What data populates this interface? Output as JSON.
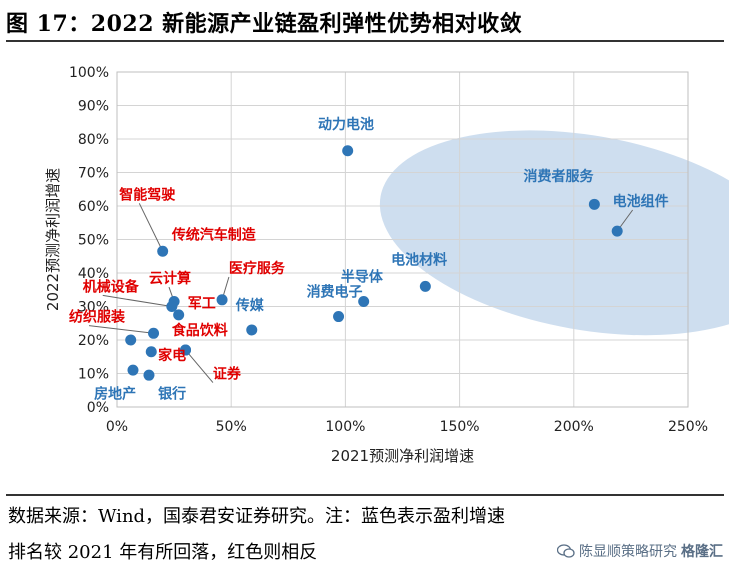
{
  "figure": {
    "title": "图 17：2022 新能源产业链盈利弹性优势相对收敛"
  },
  "chart_data": {
    "type": "scatter",
    "xlabel": "2021预测净利润增速",
    "ylabel": "2022预测净利润增速",
    "xlim": [
      0,
      2.5
    ],
    "ylim": [
      0,
      1.0
    ],
    "x_ticks": [
      0,
      0.5,
      1.0,
      1.5,
      2.0,
      2.5
    ],
    "x_tick_labels": [
      "0%",
      "50%",
      "100%",
      "150%",
      "200%",
      "250%"
    ],
    "y_ticks": [
      0,
      0.1,
      0.2,
      0.3,
      0.4,
      0.5,
      0.6,
      0.7,
      0.8,
      0.9,
      1.0
    ],
    "y_tick_labels": [
      "0%",
      "10%",
      "20%",
      "30%",
      "40%",
      "50%",
      "60%",
      "70%",
      "80%",
      "90%",
      "100%"
    ],
    "grid": true,
    "highlight_ellipse": {
      "cx": 2.06,
      "cy": 0.52,
      "rx": 0.92,
      "ry": 0.29,
      "angle_deg": 10
    },
    "colors": {
      "point": "#2e75b6",
      "label_blue": "#2e75b6",
      "label_red": "#e00000",
      "ellipse": "#bdd3ea",
      "grid": "#d4d4d4"
    },
    "points": [
      {
        "name": "动力电池",
        "x": 1.01,
        "y": 0.765,
        "color": "blue",
        "lx": 0.88,
        "ly": 0.83
      },
      {
        "name": "消费者服务",
        "x": 2.09,
        "y": 0.605,
        "color": "blue",
        "lx": 1.78,
        "ly": 0.675
      },
      {
        "name": "电池组件",
        "x": 2.19,
        "y": 0.525,
        "color": "blue",
        "lx": 2.17,
        "ly": 0.6,
        "leader": true
      },
      {
        "name": "电池材料",
        "x": 1.35,
        "y": 0.36,
        "color": "blue",
        "lx": 1.2,
        "ly": 0.425
      },
      {
        "name": "半导体",
        "x": 1.08,
        "y": 0.315,
        "color": "blue",
        "lx": 0.98,
        "ly": 0.375
      },
      {
        "name": "消费电子",
        "x": 0.97,
        "y": 0.27,
        "color": "blue",
        "lx": 0.83,
        "ly": 0.33
      },
      {
        "name": "传媒",
        "x": 0.59,
        "y": 0.23,
        "color": "blue",
        "lx": 0.52,
        "ly": 0.29
      },
      {
        "name": "智能驾驶",
        "x": 0.2,
        "y": 0.465,
        "color": "red",
        "lx": 0.01,
        "ly": 0.62,
        "leader": true
      },
      {
        "name": "传统汽车制造",
        "x": 0.2,
        "y": 0.465,
        "color": "red",
        "lx": 0.24,
        "ly": 0.5,
        "show_point": false
      },
      {
        "name": "医疗服务",
        "x": 0.46,
        "y": 0.32,
        "color": "red",
        "lx": 0.49,
        "ly": 0.4,
        "leader": true
      },
      {
        "name": "云计算",
        "x": 0.25,
        "y": 0.315,
        "color": "red",
        "lx": 0.14,
        "ly": 0.37,
        "leader": true
      },
      {
        "name": "机械设备",
        "x": 0.24,
        "y": 0.3,
        "color": "red",
        "lx": -0.15,
        "ly": 0.345,
        "leader": true
      },
      {
        "name": "军工",
        "x": 0.27,
        "y": 0.275,
        "color": "red",
        "lx": 0.31,
        "ly": 0.295
      },
      {
        "name": "纺织服装",
        "x": 0.16,
        "y": 0.22,
        "color": "red",
        "lx": -0.21,
        "ly": 0.255,
        "leader": true
      },
      {
        "name": "食品饮料",
        "x": 0.16,
        "y": 0.22,
        "color": "red",
        "lx": 0.24,
        "ly": 0.215,
        "show_point": false
      },
      {
        "name": "家电",
        "x": 0.15,
        "y": 0.165,
        "color": "red",
        "lx": 0.18,
        "ly": 0.14
      },
      {
        "name": "",
        "x": 0.06,
        "y": 0.2,
        "color": "red",
        "show_point": true
      },
      {
        "name": "",
        "x": 0.3,
        "y": 0.17,
        "color": "red",
        "show_point": true
      },
      {
        "name": "证券",
        "x": 0.3,
        "y": 0.17,
        "color": "red",
        "lx": 0.42,
        "ly": 0.085,
        "leader": true
      },
      {
        "name": "房地产",
        "x": 0.07,
        "y": 0.11,
        "color": "blue",
        "lx": -0.1,
        "ly": 0.025
      },
      {
        "name": "银行",
        "x": 0.14,
        "y": 0.095,
        "color": "blue",
        "lx": 0.18,
        "ly": 0.025
      }
    ]
  },
  "footer": {
    "line1": "数据来源：Wind，国泰君安证券研究。注：蓝色表示盈利增速",
    "line2": "排名较 2021 年有所回落，红色则相反"
  },
  "watermark": {
    "text": "陈显顺策略研究",
    "brand": "格隆汇"
  }
}
